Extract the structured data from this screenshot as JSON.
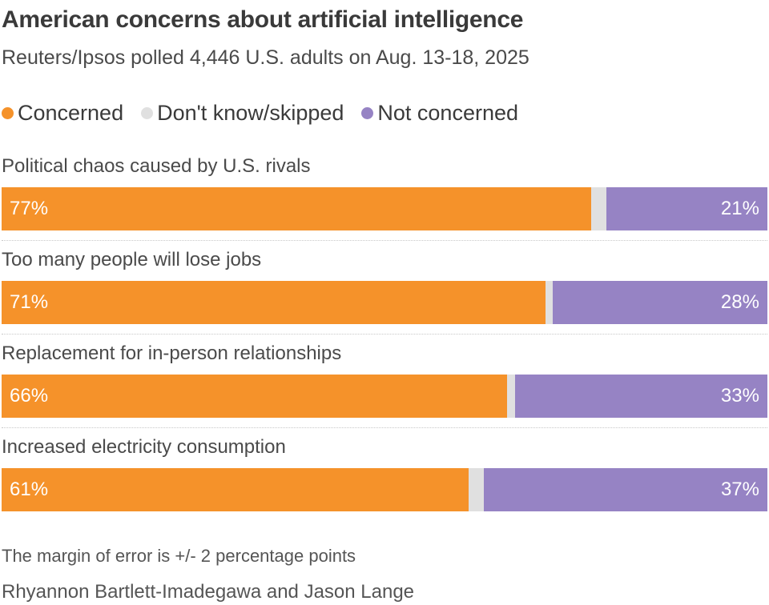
{
  "chart_data": {
    "type": "bar",
    "orientation": "horizontal",
    "stacked": true,
    "title": "American concerns about artificial intelligence",
    "subtitle": "Reuters/Ipsos polled 4,446 U.S. adults on Aug. 13-18, 2025",
    "categories": [
      "Political chaos caused by U.S. rivals",
      "Too many people will lose jobs",
      "Replacement for in-person relationships",
      "Increased electricity consumption"
    ],
    "series": [
      {
        "name": "Concerned",
        "color": "#f5922a",
        "values": [
          77,
          71,
          66,
          61
        ],
        "labels": [
          "77%",
          "71%",
          "66%",
          "61%"
        ]
      },
      {
        "name": "Don't know/skipped",
        "color": "#e0e0e0",
        "values": [
          2,
          1,
          1,
          2
        ]
      },
      {
        "name": "Not concerned",
        "color": "#9683c4",
        "values": [
          21,
          28,
          33,
          37
        ],
        "labels": [
          "21%",
          "28%",
          "33%",
          "37%"
        ]
      }
    ],
    "xlim": [
      0,
      100
    ],
    "grid": false,
    "legend_position": "top-left"
  },
  "footer": {
    "note": "The margin of error is +/- 2 percentage points",
    "credit": "Rhyannon Bartlett-Imadegawa and Jason Lange"
  }
}
